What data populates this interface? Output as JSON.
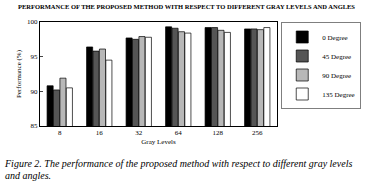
{
  "chart_data": {
    "type": "bar",
    "title": "PERFORMANCE OF THE PROPOSED METHOD WITH RESPECT TO DIFFERENT GRAY LEVELS AND ANGLES",
    "x_label": "Gray Levels",
    "y_label": "Performance (%)",
    "caption": "Figure 2. The performance of the proposed method with respect to different gray levels and angles.",
    "categories": [
      "8",
      "16",
      "32",
      "64",
      "128",
      "256"
    ],
    "series": [
      {
        "name": "0 Degree",
        "color": "#000000",
        "values": [
          90.8,
          96.4,
          97.7,
          99.3,
          99.2,
          99.0
        ]
      },
      {
        "name": "45 Degree",
        "color": "#555555",
        "values": [
          90.2,
          95.8,
          97.5,
          99.1,
          99.2,
          99.0
        ]
      },
      {
        "name": "90 Degree",
        "color": "#b8b8b8",
        "values": [
          91.9,
          96.1,
          97.9,
          98.6,
          98.8,
          98.9
        ]
      },
      {
        "name": "135 Degree",
        "color": "#ffffff",
        "values": [
          90.5,
          94.5,
          97.8,
          98.4,
          98.5,
          99.2
        ]
      }
    ],
    "ylim": [
      85,
      100
    ],
    "yticks": [
      85,
      90,
      95,
      100
    ],
    "legend": "right",
    "grid": false
  }
}
